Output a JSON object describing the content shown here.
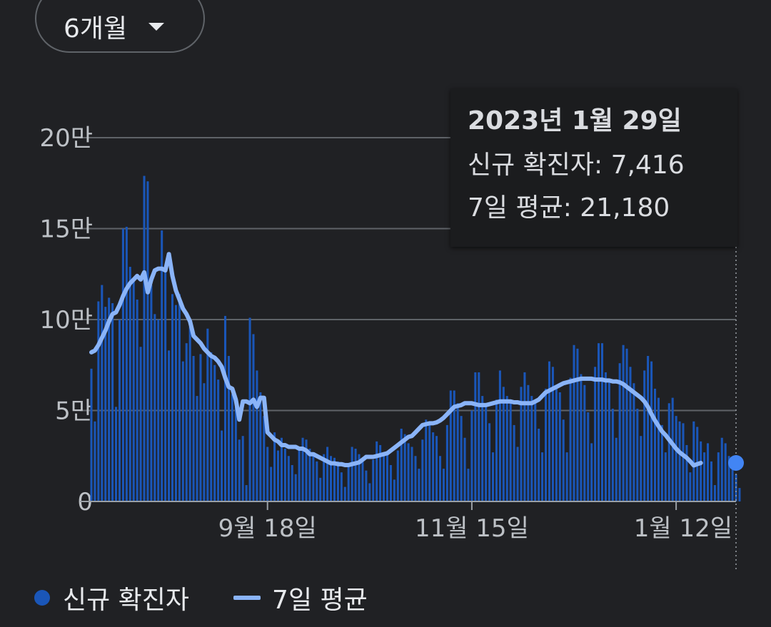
{
  "period_select": {
    "label": "6개월"
  },
  "tooltip": {
    "date": "2023년 1월 29일",
    "cases_label": "신규 확진자",
    "cases_value": "7,416",
    "avg_label": "7일 평균",
    "avg_value": "21,180"
  },
  "legend": {
    "bars_label": "신규 확진자",
    "line_label": "7일 평균"
  },
  "colors": {
    "bars": "#1a56b8",
    "line": "#8ab4f8",
    "grid": "#5f6368",
    "text": "#e8eaed",
    "background": "#202124",
    "marker": "#4285f4"
  },
  "chart_data": {
    "type": "bar",
    "title": "",
    "xlabel": "",
    "ylabel": "",
    "ylim": [
      0,
      200000
    ],
    "yticks": [
      0,
      50000,
      100000,
      150000,
      200000
    ],
    "yticklabels": [
      "0",
      "5만",
      "10만",
      "15만",
      "20만"
    ],
    "xtick_dates": [
      "2022-09-18",
      "2022-11-15",
      "2023-01-12"
    ],
    "xticklabels": [
      "9월 18일",
      "11월 15일",
      "1월 12일"
    ],
    "x_range": [
      "2022-07-30",
      "2023-01-29"
    ],
    "grid": true,
    "legend_position": "bottom-left",
    "series": [
      {
        "name": "신규 확진자",
        "type": "bar",
        "start_date": "2022-07-30",
        "values": [
          73000,
          44000,
          110000,
          119000,
          107000,
          112000,
          109000,
          52000,
          100000,
          150000,
          151000,
          129000,
          121000,
          111000,
          85000,
          179000,
          176000,
          119000,
          103000,
          100000,
          149000,
          128000,
          83000,
          114000,
          108000,
          114000,
          77000,
          87000,
          96000,
          80000,
          58000,
          81000,
          65000,
          95000,
          82000,
          75000,
          67000,
          39000,
          102000,
          80000,
          59000,
          52000,
          34000,
          36000,
          9000,
          101000,
          92000,
          72000,
          60000,
          47000,
          30000,
          19000,
          38000,
          28000,
          35000,
          29000,
          25000,
          20000,
          15000,
          28000,
          35000,
          34000,
          29000,
          25000,
          22000,
          13000,
          26000,
          30000,
          25000,
          24000,
          22000,
          16000,
          8000,
          21000,
          30000,
          29000,
          26000,
          24000,
          17000,
          10000,
          23000,
          33000,
          31000,
          26000,
          26000,
          20000,
          12000,
          28000,
          40000,
          37000,
          32000,
          30000,
          25000,
          18000,
          34000,
          45000,
          42000,
          38000,
          36000,
          25000,
          18000,
          42000,
          61000,
          61000,
          54000,
          47000,
          35000,
          18000,
          50000,
          71000,
          71000,
          58000,
          52000,
          43000,
          27000,
          56000,
          72000,
          63000,
          58000,
          56000,
          42000,
          30000,
          63000,
          71000,
          64000,
          58000,
          56000,
          40000,
          27000,
          62000,
          77000,
          74000,
          62000,
          60000,
          45000,
          27000,
          68000,
          86000,
          84000,
          70000,
          64000,
          49000,
          32000,
          74000,
          87000,
          87000,
          71000,
          66000,
          51000,
          35000,
          76000,
          86000,
          84000,
          74000,
          65000,
          51000,
          36000,
          72000,
          80000,
          77000,
          62000,
          57000,
          42000,
          27000,
          54000,
          57000,
          47000,
          44000,
          43000,
          31000,
          16000,
          44000,
          41000,
          33000,
          27000,
          32000,
          22000,
          9000,
          27000,
          35000,
          32000,
          25000,
          20000,
          15000,
          7416
        ]
      },
      {
        "name": "7일 평균",
        "type": "line",
        "start_date": "2022-07-30",
        "values": [
          82000,
          83000,
          86000,
          90000,
          94000,
          99000,
          103000,
          104000,
          108000,
          113000,
          117000,
          120000,
          122000,
          124000,
          122000,
          126000,
          115000,
          122000,
          127000,
          128000,
          128000,
          127000,
          136000,
          124000,
          116000,
          111000,
          106000,
          103000,
          99000,
          91000,
          89000,
          87000,
          84000,
          82000,
          80000,
          79000,
          77000,
          74000,
          68000,
          63000,
          62000,
          56000,
          45000,
          55000,
          55000,
          54000,
          56000,
          52000,
          57000,
          57000,
          38000,
          36000,
          34000,
          33000,
          31000,
          31000,
          30000,
          30000,
          30000,
          29000,
          29000,
          28000,
          26000,
          26000,
          25000,
          24000,
          23000,
          22000,
          21000,
          21000,
          20500,
          20500,
          20000,
          20000,
          20500,
          21000,
          21500,
          23000,
          24500,
          24500,
          24500,
          25000,
          25500,
          26000,
          26500,
          28000,
          29500,
          31000,
          32500,
          34000,
          35500,
          36000,
          38000,
          40000,
          42000,
          42500,
          43000,
          43000,
          43500,
          44500,
          46000,
          48000,
          50000,
          52000,
          52500,
          53000,
          54000,
          54000,
          54000,
          53500,
          53000,
          53000,
          53000,
          53500,
          54000,
          54500,
          55000,
          55000,
          55000,
          55000,
          54500,
          54500,
          54000,
          54000,
          54000,
          54000,
          55000,
          56000,
          58000,
          60000,
          61000,
          62000,
          63000,
          64000,
          65000,
          65500,
          66000,
          66500,
          67000,
          67500,
          67500,
          67500,
          67500,
          67000,
          67000,
          67000,
          66500,
          66500,
          66000,
          66000,
          65500,
          64500,
          63000,
          61500,
          60000,
          58500,
          57000,
          55000,
          52000,
          48000,
          44500,
          41500,
          38500,
          36500,
          34000,
          31500,
          29000,
          27000,
          25500,
          24000,
          22000,
          19800,
          20500,
          21180
        ]
      }
    ]
  }
}
